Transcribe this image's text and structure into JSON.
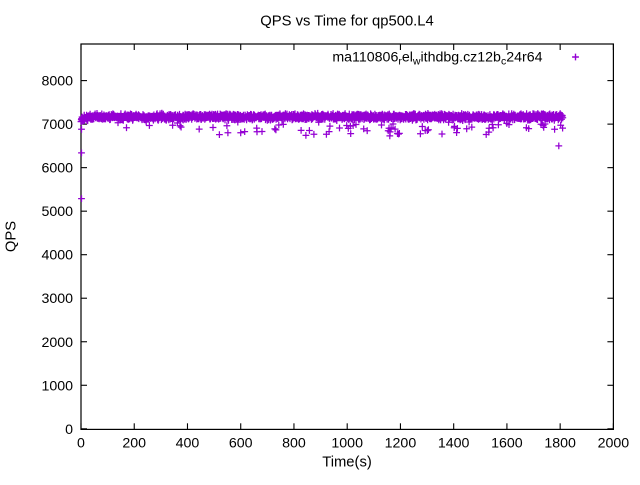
{
  "page": {
    "background": "#ffffff",
    "kind": "gnuplot-style scatter chart"
  },
  "chart_data": {
    "type": "scatter",
    "title": "QPS vs Time for qp500.L4",
    "xlabel": "Time(s)",
    "ylabel": "QPS",
    "xlim": [
      0,
      2000
    ],
    "ylim": [
      0,
      8840
    ],
    "x_ticks": [
      0,
      200,
      400,
      600,
      800,
      1000,
      1200,
      1400,
      1600,
      1800,
      2000
    ],
    "y_ticks": [
      0,
      1000,
      2000,
      3000,
      4000,
      5000,
      6000,
      7000,
      8000
    ],
    "grid": false,
    "legend": {
      "position": "top-right-inside",
      "marker_glyph": "+",
      "label_plain": "ma110806_rel_withdbg.cz12b_c24r64",
      "label_segments": [
        {
          "text": "ma110806"
        },
        {
          "text": "r",
          "sub": true
        },
        {
          "text": "el"
        },
        {
          "text": "w",
          "sub": true
        },
        {
          "text": "ithdbg.cz12b"
        },
        {
          "text": "c",
          "sub": true
        },
        {
          "text": "24r64"
        }
      ]
    },
    "series": [
      {
        "name": "ma110806_rel_withdbg.cz12b_c24r64",
        "marker": "plus",
        "color": "#9400D3",
        "summary": "Dense steady band of ~1800 one-per-second samples at about 7050-7270 QPS from t=0 to t=1810s, sparse dips to 6750-7050, a few deep outliers",
        "sampling": {
          "t_start": 0,
          "t_end": 1810,
          "dt": 1,
          "seed": 1337
        },
        "band": {
          "mean": 7168,
          "halfwidth": 88,
          "warmup_seconds": 30,
          "warmup_drop": 55
        },
        "dip_segments": [
          {
            "t0": 0,
            "t1": 520,
            "p": 0.02,
            "lo": 6880,
            "hi": 7050
          },
          {
            "t0": 520,
            "t1": 1560,
            "p": 0.055,
            "lo": 6760,
            "hi": 7050
          },
          {
            "t0": 1560,
            "t1": 1812,
            "p": 0.04,
            "lo": 6840,
            "hi": 7050
          }
        ],
        "outliers": [
          [
            2,
            6880
          ],
          [
            2,
            6340
          ],
          [
            2,
            5290
          ],
          [
            520,
            6760
          ],
          [
            600,
            6800
          ],
          [
            680,
            6830
          ],
          [
            845,
            6740
          ],
          [
            1160,
            6730
          ],
          [
            1795,
            6500
          ]
        ]
      }
    ]
  }
}
